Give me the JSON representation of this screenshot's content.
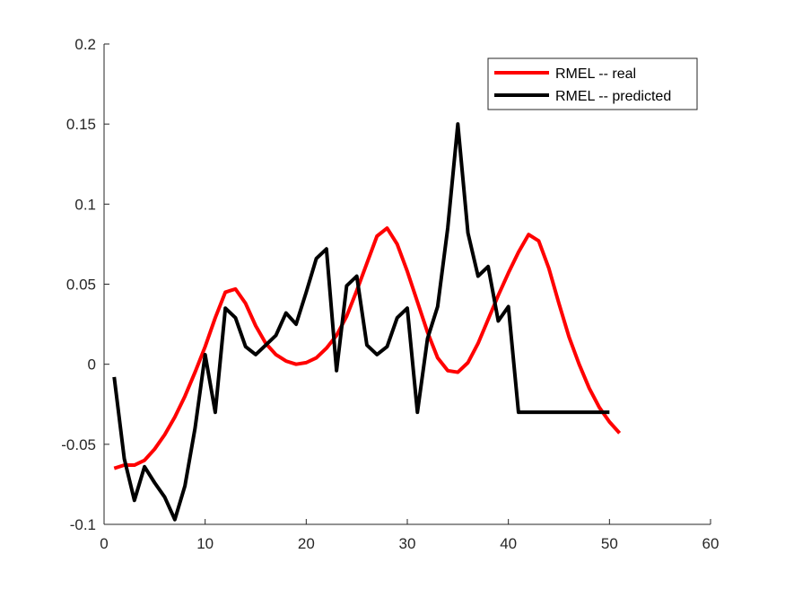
{
  "chart_data": {
    "type": "line",
    "title": "",
    "xlabel": "",
    "ylabel": "",
    "xlim": [
      0,
      60
    ],
    "ylim": [
      -0.1,
      0.2
    ],
    "xticks": [
      0,
      10,
      20,
      30,
      40,
      50,
      60
    ],
    "yticks": [
      -0.1,
      -0.05,
      0,
      0.05,
      0.1,
      0.15,
      0.2
    ],
    "xtick_labels": [
      "0",
      "10",
      "20",
      "30",
      "40",
      "50",
      "60"
    ],
    "ytick_labels": [
      "-0.1",
      "-0.05",
      "0",
      "0.05",
      "0.1",
      "0.15",
      "0.2"
    ],
    "grid": false,
    "legend_position": "top-right",
    "series": [
      {
        "name": "RMEL -- real",
        "color": "#ff0000",
        "x": [
          1,
          2,
          3,
          4,
          5,
          6,
          7,
          8,
          9,
          10,
          11,
          12,
          13,
          14,
          15,
          16,
          17,
          18,
          19,
          20,
          21,
          22,
          23,
          24,
          25,
          26,
          27,
          28,
          29,
          30,
          31,
          32,
          33,
          34,
          35,
          36,
          37,
          38,
          39,
          40,
          41,
          42,
          43,
          44,
          45,
          46,
          47,
          48,
          49,
          50,
          51
        ],
        "y": [
          -0.065,
          -0.063,
          -0.063,
          -0.06,
          -0.053,
          -0.044,
          -0.033,
          -0.02,
          -0.005,
          0.011,
          0.029,
          0.045,
          0.047,
          0.038,
          0.024,
          0.013,
          0.006,
          0.002,
          0.0,
          0.001,
          0.004,
          0.01,
          0.018,
          0.03,
          0.046,
          0.063,
          0.08,
          0.085,
          0.075,
          0.058,
          0.039,
          0.02,
          0.004,
          -0.004,
          -0.005,
          0.001,
          0.013,
          0.028,
          0.043,
          0.057,
          0.07,
          0.081,
          0.077,
          0.06,
          0.038,
          0.017,
          0.0,
          -0.015,
          -0.027,
          -0.036,
          -0.043
        ]
      },
      {
        "name": "RMEL -- predicted",
        "color": "#000000",
        "x": [
          1,
          2,
          3,
          4,
          5,
          6,
          7,
          8,
          9,
          10,
          11,
          12,
          13,
          14,
          15,
          16,
          17,
          18,
          19,
          20,
          21,
          22,
          23,
          24,
          25,
          26,
          27,
          28,
          29,
          30,
          31,
          32,
          33,
          34,
          35,
          36,
          37,
          38,
          39,
          40,
          41,
          42,
          43,
          44,
          45,
          46,
          47,
          48,
          49,
          50
        ],
        "y": [
          -0.008,
          -0.059,
          -0.085,
          -0.064,
          -0.074,
          -0.083,
          -0.097,
          -0.076,
          -0.04,
          0.006,
          -0.03,
          0.035,
          0.029,
          0.011,
          0.006,
          0.012,
          0.018,
          0.032,
          0.025,
          0.045,
          0.066,
          0.072,
          -0.004,
          0.049,
          0.055,
          0.012,
          0.006,
          0.011,
          0.029,
          0.035,
          -0.03,
          0.016,
          0.036,
          0.085,
          0.15,
          0.082,
          0.055,
          0.061,
          0.027,
          0.036,
          -0.03,
          -0.03,
          -0.03,
          -0.03,
          -0.03,
          -0.03,
          -0.03,
          -0.03,
          -0.03,
          -0.03
        ]
      }
    ]
  }
}
